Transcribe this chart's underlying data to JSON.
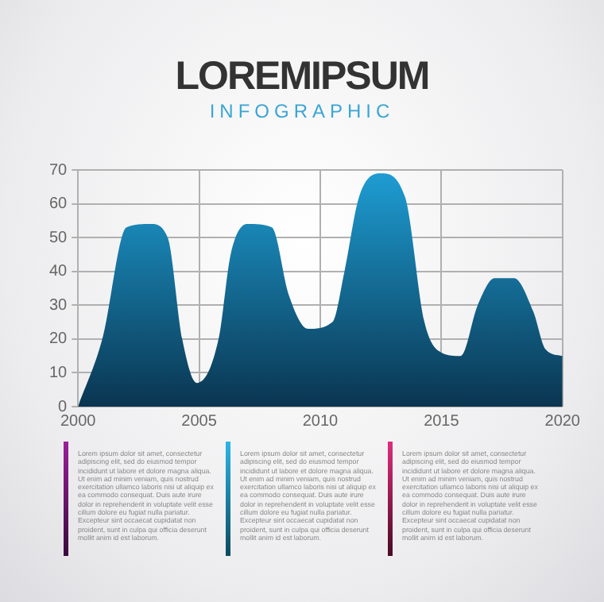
{
  "chart_data": {
    "type": "area",
    "title": "LOREMIPSUM",
    "subtitle": "INFOGRAPHIC",
    "x": [
      2000,
      2001,
      2002,
      2003,
      2003.7,
      2004.3,
      2004.9,
      2005.8,
      2006.3,
      2007,
      2008,
      2008.7,
      2009.5,
      2010.5,
      2011,
      2011.6,
      2012.5,
      2013.5,
      2014.3,
      2015,
      2015.8,
      2016.5,
      2017.2,
      2018,
      2018.8,
      2019.3,
      2020
    ],
    "series": [
      {
        "color": "#1e9ed4",
        "values": [
          0,
          20,
          53,
          54,
          50,
          20,
          7,
          20,
          45,
          54,
          53,
          33,
          23,
          25,
          40,
          62,
          69,
          62,
          25,
          16,
          15,
          30,
          38,
          38,
          28,
          17,
          15
        ]
      }
    ],
    "xlim": [
      2000,
      2020
    ],
    "xticks": [
      2000,
      2005,
      2010,
      2015,
      2020
    ],
    "ylim": [
      0,
      70
    ],
    "yticks": [
      0,
      10,
      20,
      30,
      40,
      50,
      60,
      70
    ],
    "grid": true,
    "legend": false,
    "annotations": [
      "Lorem ipsum dolor sit amet, consectetur adipiscing elit, sed do eiusmod tempor incididunt ut labore et dolore magna aliqua. Ut enim ad minim veniam, quis nostrud exercitation ullamco laboris nisi ut aliquip ex ea commodo consequat. Duis aute irure dolor in reprehenderit in voluptate velit esse cillum dolore eu fugiat nulla pariatur. Excepteur sint occaecat cupidatat non proident, sunt in culpa qui officia deserunt mollit anim id est laborum.",
      "Lorem ipsum dolor sit amet, consectetur adipiscing elit, sed do eiusmod tempor incididunt ut labore et dolore magna aliqua. Ut enim ad minim veniam, quis nostrud exercitation ullamco laboris nisi ut aliquip ex ea commodo consequat. Duis aute irure dolor in reprehenderit in voluptate velit esse cillum dolore eu fugiat nulla pariatur. Excepteur sint occaecat cupidatat non proident, sunt in culpa qui officia deserunt mollit anim id est laborum.",
      "Lorem ipsum dolor sit amet, consectetur adipiscing elit, sed do eiusmod tempor incididunt ut labore et dolore magna aliqua. Ut enim ad minim veniam, quis nostrud exercitation ullamco laboris nisi ut aliquip ex ea commodo consequat. Duis aute irure dolor in reprehenderit in voluptate velit esse cillum dolore eu fugiat nulla pariatur. Excepteur sint occaecat cupidatat non proident, sunt in culpa qui officia deserunt mollit anim id est laborum."
    ]
  }
}
